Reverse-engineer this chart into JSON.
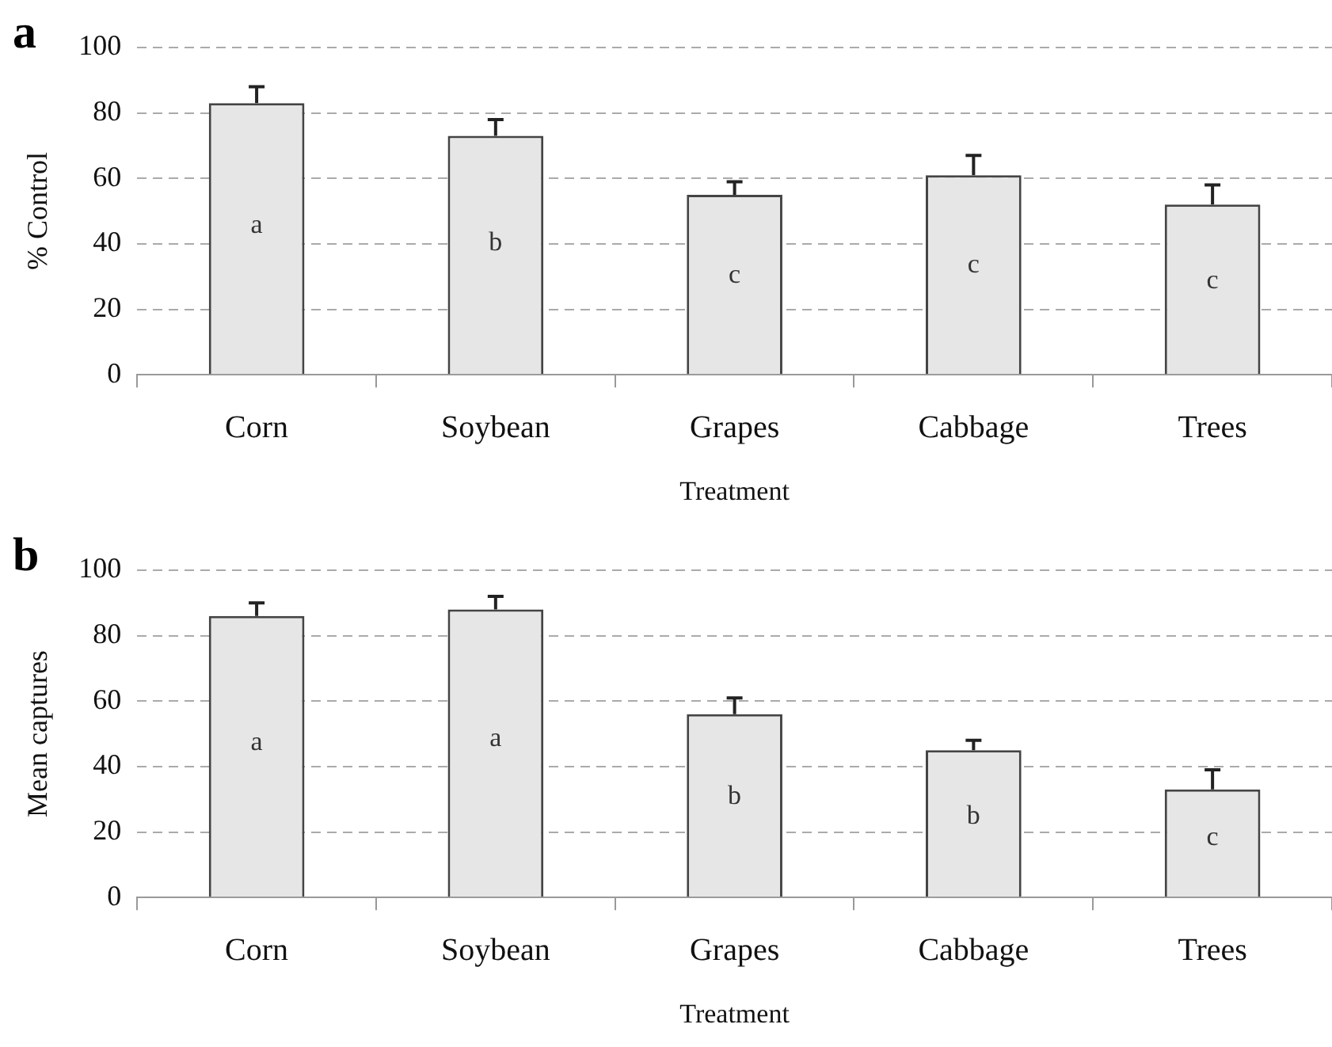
{
  "chart_data": [
    {
      "type": "bar",
      "title": "a",
      "xlabel": "Treatment",
      "ylabel": "% Control",
      "categories": [
        "Corn",
        "Soybean",
        "Grapes",
        "Cabbage",
        "Trees"
      ],
      "values": [
        83,
        73,
        55,
        61,
        52
      ],
      "errors": [
        [
          83,
          88
        ],
        [
          73,
          78
        ],
        [
          55,
          59
        ],
        [
          61,
          67
        ],
        [
          52,
          58
        ]
      ],
      "color": "#e6e6e6",
      "ylim": [
        0,
        100
      ],
      "yticks": [
        0,
        20,
        40,
        60,
        80,
        100
      ],
      "grid": "y",
      "legend": false,
      "annotations": [
        "a",
        "b",
        "c",
        "c",
        "c"
      ]
    },
    {
      "type": "bar",
      "title": "b",
      "xlabel": "Treatment",
      "ylabel": "Mean captures",
      "categories": [
        "Corn",
        "Soybean",
        "Grapes",
        "Cabbage",
        "Trees"
      ],
      "values": [
        86,
        88,
        56,
        45,
        33
      ],
      "errors": [
        [
          86,
          90
        ],
        [
          88,
          92
        ],
        [
          56,
          61
        ],
        [
          45,
          48
        ],
        [
          33,
          39
        ]
      ],
      "color": "#e6e6e6",
      "ylim": [
        0,
        100
      ],
      "yticks": [
        0,
        20,
        40,
        60,
        80,
        100
      ],
      "grid": "y",
      "legend": false,
      "annotations": [
        "a",
        "a",
        "b",
        "b",
        "c"
      ]
    }
  ]
}
